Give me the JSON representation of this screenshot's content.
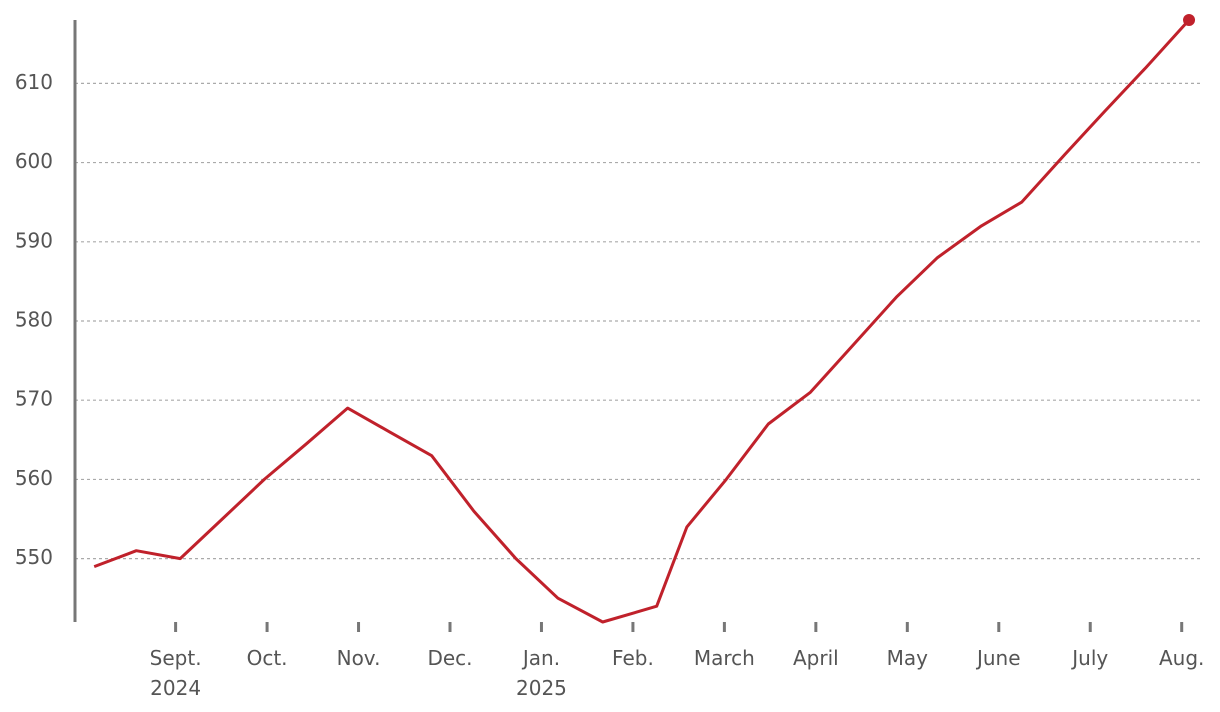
{
  "chart_data": {
    "type": "line",
    "color": "#c0212b",
    "end_marker": true,
    "grid": true,
    "x": [
      -0.89,
      -0.43,
      0.05,
      0.51,
      0.97,
      1.43,
      1.88,
      2.34,
      2.8,
      3.26,
      3.72,
      4.18,
      4.67,
      5.26,
      5.59,
      6.02,
      6.48,
      6.94,
      7.41,
      7.88,
      8.33,
      8.81,
      9.25,
      9.72,
      10.16,
      10.61,
      11.08
    ],
    "values": [
      549,
      551,
      550,
      555,
      560,
      564.5,
      569,
      566,
      563,
      556,
      550,
      545,
      542,
      544,
      554,
      560,
      567,
      571,
      577,
      583,
      588,
      592,
      595,
      601,
      606.5,
      612,
      618
    ],
    "xlim": [
      -1.1,
      11.2
    ],
    "xticks": [
      {
        "value": 0,
        "label": [
          "Sept.",
          "2024"
        ]
      },
      {
        "value": 1,
        "label": [
          "Oct."
        ]
      },
      {
        "value": 2,
        "label": [
          "Nov."
        ]
      },
      {
        "value": 3,
        "label": [
          "Dec."
        ]
      },
      {
        "value": 4,
        "label": [
          "Jan.",
          "2025"
        ]
      },
      {
        "value": 5,
        "label": [
          "Feb."
        ]
      },
      {
        "value": 6,
        "label": [
          "March"
        ]
      },
      {
        "value": 7,
        "label": [
          "April"
        ]
      },
      {
        "value": 8,
        "label": [
          "May"
        ]
      },
      {
        "value": 9,
        "label": [
          "June"
        ]
      },
      {
        "value": 10,
        "label": [
          "July"
        ]
      },
      {
        "value": 11,
        "label": [
          "Aug."
        ]
      }
    ],
    "ylim": [
      542,
      618
    ],
    "yticks": [
      550,
      560,
      570,
      580,
      590,
      600,
      610
    ]
  }
}
